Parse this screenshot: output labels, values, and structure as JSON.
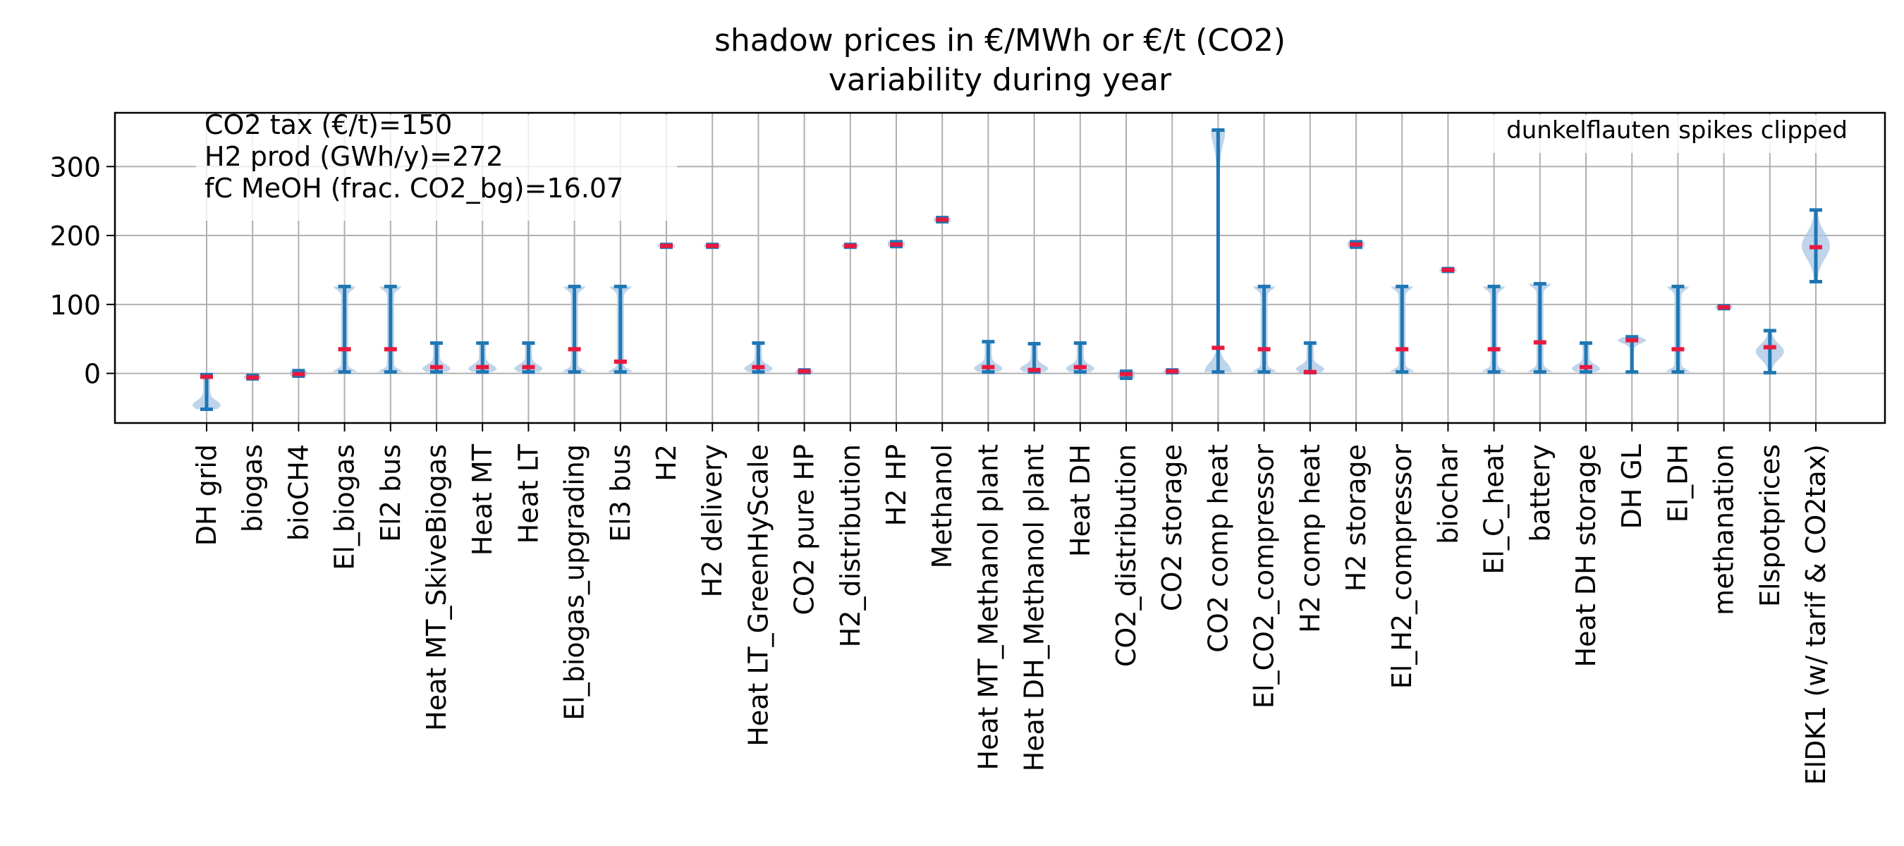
{
  "chart_data": {
    "type": "violin",
    "title": "shadow prices in €/MWh or €/t (CO2)",
    "subtitle": "variability during year",
    "xlabel": "",
    "ylabel": "",
    "ylim": [
      -72,
      378
    ],
    "yticks": [
      0,
      100,
      200,
      300
    ],
    "grid": true,
    "annotations": {
      "info_lines": [
        "CO2 tax (€/t)=150",
        "H2 prod (GWh/y)=272",
        "fC MeOH (frac. CO2_bg)=16.07"
      ],
      "clip_note": "dunkelflauten spikes clipped"
    },
    "colors": {
      "range": "#1f77b4",
      "violin": "#a9c6e3",
      "median": "#e8193f"
    },
    "series": [
      {
        "category": "DH grid",
        "min": -52,
        "max": -2,
        "median": -5,
        "shape": "low"
      },
      {
        "category": "biogas",
        "min": -8,
        "max": -3,
        "median": -6,
        "shape": "point"
      },
      {
        "category": "bioCH4",
        "min": -4,
        "max": 4,
        "median": -1,
        "shape": "point"
      },
      {
        "category": "El_biogas",
        "min": 2,
        "max": 126,
        "median": 35,
        "shape": "ends"
      },
      {
        "category": "El2 bus",
        "min": 2,
        "max": 126,
        "median": 35,
        "shape": "ends"
      },
      {
        "category": "Heat MT_SkiveBiogas",
        "min": 2,
        "max": 44,
        "median": 9,
        "shape": "low"
      },
      {
        "category": "Heat MT",
        "min": 2,
        "max": 44,
        "median": 9,
        "shape": "low"
      },
      {
        "category": "Heat LT",
        "min": 2,
        "max": 44,
        "median": 9,
        "shape": "low"
      },
      {
        "category": "El_biogas_upgrading",
        "min": 2,
        "max": 126,
        "median": 35,
        "shape": "ends"
      },
      {
        "category": "El3 bus",
        "min": 2,
        "max": 126,
        "median": 17,
        "shape": "ends"
      },
      {
        "category": "H2",
        "min": 183,
        "max": 187,
        "median": 185,
        "shape": "point"
      },
      {
        "category": "H2 delivery",
        "min": 183,
        "max": 187,
        "median": 185,
        "shape": "point"
      },
      {
        "category": "Heat LT_GreenHyScale",
        "min": 2,
        "max": 44,
        "median": 9,
        "shape": "low"
      },
      {
        "category": "CO2 pure HP",
        "min": 1,
        "max": 5,
        "median": 3,
        "shape": "point"
      },
      {
        "category": "H2_distribution",
        "min": 183,
        "max": 187,
        "median": 185,
        "shape": "point"
      },
      {
        "category": "H2 HP",
        "min": 184,
        "max": 191,
        "median": 187,
        "shape": "point"
      },
      {
        "category": "Methanol",
        "min": 220,
        "max": 226,
        "median": 223,
        "shape": "point"
      },
      {
        "category": "Heat MT_Methanol plant",
        "min": 2,
        "max": 46,
        "median": 9,
        "shape": "low"
      },
      {
        "category": "Heat DH_Methanol plant",
        "min": 2,
        "max": 43,
        "median": 5,
        "shape": "low"
      },
      {
        "category": "Heat DH",
        "min": 2,
        "max": 44,
        "median": 9,
        "shape": "low"
      },
      {
        "category": "CO2_distribution",
        "min": -7,
        "max": 3,
        "median": -1,
        "shape": "point"
      },
      {
        "category": "CO2 storage",
        "min": 1,
        "max": 5,
        "median": 3,
        "shape": "point"
      },
      {
        "category": "CO2 comp heat",
        "min": 2,
        "max": 353,
        "median": 37,
        "shape": "tall"
      },
      {
        "category": "El_CO2_compressor",
        "min": 2,
        "max": 126,
        "median": 35,
        "shape": "ends"
      },
      {
        "category": "H2 comp heat",
        "min": 1,
        "max": 44,
        "median": 2,
        "shape": "low"
      },
      {
        "category": "H2 storage",
        "min": 183,
        "max": 191,
        "median": 187,
        "shape": "point"
      },
      {
        "category": "El_H2_compressor",
        "min": 2,
        "max": 126,
        "median": 35,
        "shape": "ends"
      },
      {
        "category": "biochar",
        "min": 148,
        "max": 152,
        "median": 150,
        "shape": "point"
      },
      {
        "category": "El_C_heat",
        "min": 2,
        "max": 126,
        "median": 35,
        "shape": "ends"
      },
      {
        "category": "battery",
        "min": 2,
        "max": 130,
        "median": 45,
        "shape": "ends"
      },
      {
        "category": "Heat DH storage",
        "min": 2,
        "max": 44,
        "median": 9,
        "shape": "low"
      },
      {
        "category": "DH GL",
        "min": 2,
        "max": 53,
        "median": 48,
        "shape": "high"
      },
      {
        "category": "El_DH",
        "min": 2,
        "max": 126,
        "median": 35,
        "shape": "ends"
      },
      {
        "category": "methanation",
        "min": 94,
        "max": 98,
        "median": 96,
        "shape": "point"
      },
      {
        "category": "Elspotprices",
        "min": 1,
        "max": 62,
        "median": 38,
        "shape": "mid"
      },
      {
        "category": "ElDK1 (w/ tarif & CO2tax)",
        "min": 133,
        "max": 237,
        "median": 183,
        "shape": "mid"
      }
    ]
  }
}
